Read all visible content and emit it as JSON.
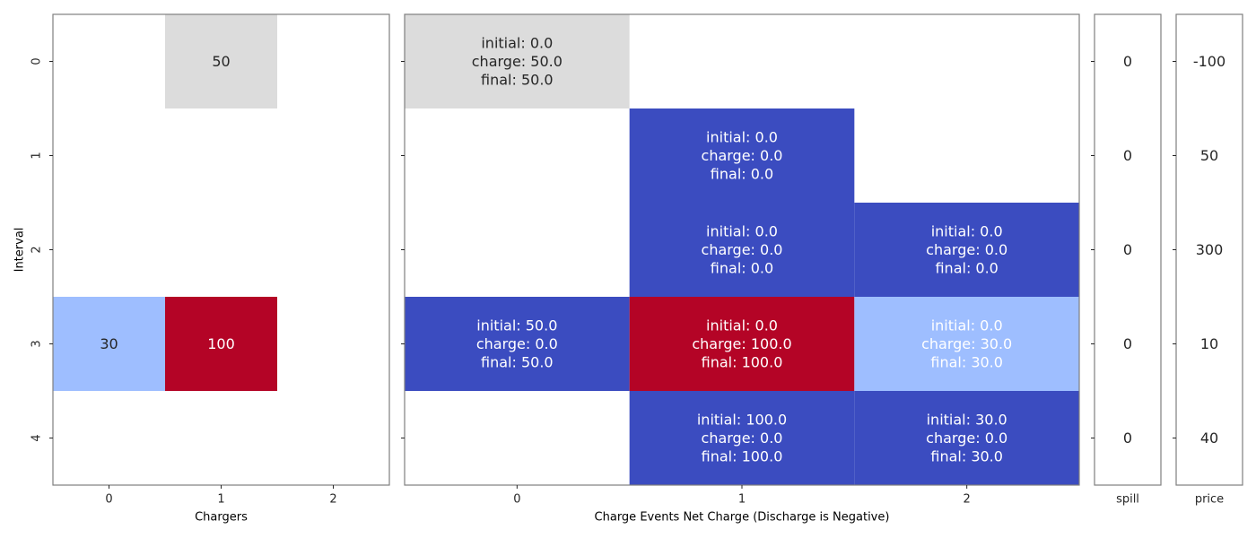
{
  "chart_data": [
    {
      "type": "heatmap",
      "title": "",
      "ylabel": "Interval",
      "xlabel": "Chargers",
      "rows": [
        "0",
        "1",
        "2",
        "3",
        "4"
      ],
      "columns": [
        "0",
        "1",
        "2"
      ],
      "cells": [
        {
          "row": 0,
          "col": 1,
          "value": 50,
          "label": "50",
          "color": "#dcdcdc",
          "text_color": "#262626"
        },
        {
          "row": 3,
          "col": 0,
          "value": 30,
          "label": "30",
          "color": "#9ebeff",
          "text_color": "#262626"
        },
        {
          "row": 3,
          "col": 1,
          "value": 100,
          "label": "100",
          "color": "#b40426",
          "text_color": "#ffffff"
        }
      ]
    },
    {
      "type": "heatmap",
      "title": "",
      "xlabel": "Charge Events Net Charge (Discharge is Negative)",
      "rows": [
        "0",
        "1",
        "2",
        "3",
        "4"
      ],
      "columns": [
        "0",
        "1",
        "2"
      ],
      "cells": [
        {
          "row": 0,
          "col": 0,
          "value": 50.0,
          "lines": [
            "initial: 0.0",
            "charge: 50.0",
            "final: 50.0"
          ],
          "color": "#dcdcdc",
          "text_color": "#262626"
        },
        {
          "row": 1,
          "col": 1,
          "value": 0.0,
          "lines": [
            "initial: 0.0",
            "charge: 0.0",
            "final: 0.0"
          ],
          "color": "#3b4cc0",
          "text_color": "#ffffff"
        },
        {
          "row": 2,
          "col": 1,
          "value": 0.0,
          "lines": [
            "initial: 0.0",
            "charge: 0.0",
            "final: 0.0"
          ],
          "color": "#3b4cc0",
          "text_color": "#ffffff"
        },
        {
          "row": 2,
          "col": 2,
          "value": 0.0,
          "lines": [
            "initial: 0.0",
            "charge: 0.0",
            "final: 0.0"
          ],
          "color": "#3b4cc0",
          "text_color": "#ffffff"
        },
        {
          "row": 3,
          "col": 0,
          "value": 0.0,
          "lines": [
            "initial: 50.0",
            "charge: 0.0",
            "final: 50.0"
          ],
          "color": "#3b4cc0",
          "text_color": "#ffffff"
        },
        {
          "row": 3,
          "col": 1,
          "value": 100.0,
          "lines": [
            "initial: 0.0",
            "charge: 100.0",
            "final: 100.0"
          ],
          "color": "#b40426",
          "text_color": "#ffffff"
        },
        {
          "row": 3,
          "col": 2,
          "value": 30.0,
          "lines": [
            "initial: 0.0",
            "charge: 30.0",
            "final: 30.0"
          ],
          "color": "#9ebeff",
          "text_color": "#ffffff"
        },
        {
          "row": 4,
          "col": 1,
          "value": 0.0,
          "lines": [
            "initial: 100.0",
            "charge: 0.0",
            "final: 100.0"
          ],
          "color": "#3b4cc0",
          "text_color": "#ffffff"
        },
        {
          "row": 4,
          "col": 2,
          "value": 0.0,
          "lines": [
            "initial: 30.0",
            "charge: 0.0",
            "final: 30.0"
          ],
          "color": "#3b4cc0",
          "text_color": "#ffffff"
        }
      ]
    },
    {
      "type": "table",
      "xlabel": "spill",
      "values": [
        "0",
        "0",
        "0",
        "0",
        "0"
      ]
    },
    {
      "type": "table",
      "xlabel": "price",
      "values": [
        "-100",
        "50",
        "300",
        "10",
        "40"
      ]
    }
  ]
}
